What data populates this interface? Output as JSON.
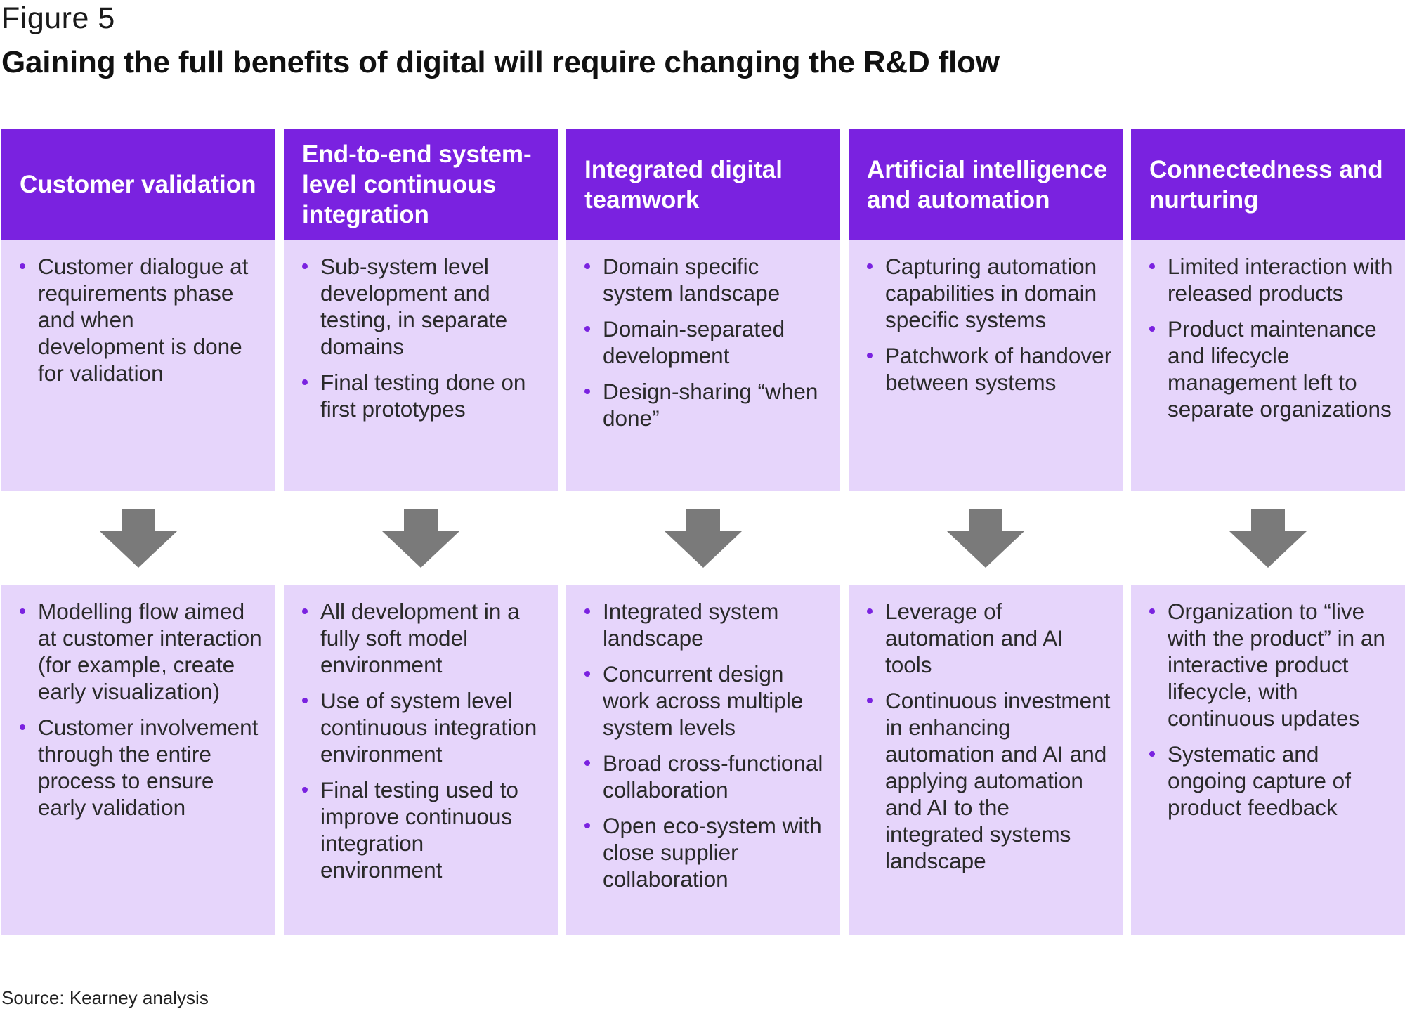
{
  "figure_label": "Figure 5",
  "title": "Gaining the full benefits of digital will require changing the R&D flow",
  "columns": [
    {
      "header": "Customer validation",
      "current": [
        "Customer dialogue at requirements phase and when development is done for validation"
      ],
      "future": [
        "Modelling flow aimed at customer interaction (for example, create early visualization)",
        "Customer involvement through the entire process to ensure early validation"
      ]
    },
    {
      "header": "End-to-end system-level continuous integration",
      "current": [
        "Sub-system level development and testing, in separate domains",
        "Final testing done on first prototypes"
      ],
      "future": [
        "All development in a fully soft model environment",
        "Use of system level continuous integration environment",
        "Final testing used to improve continuous integration environment"
      ]
    },
    {
      "header": "Integrated digital teamwork",
      "current": [
        "Domain specific system landscape",
        "Domain-separated development",
        "Design-sharing “when done”"
      ],
      "future": [
        "Integrated system landscape",
        "Concurrent design work across multiple system levels",
        "Broad cross-functional collaboration",
        "Open eco-system with close supplier collaboration"
      ]
    },
    {
      "header": "Artificial intelligence and automation",
      "current": [
        "Capturing automation capabilities in domain specific systems",
        "Patchwork of handover between systems"
      ],
      "future": [
        "Leverage of automation and AI tools",
        "Continuous investment in enhancing automation and AI and applying automation and AI to the integrated systems landscape"
      ]
    },
    {
      "header": "Connectedness and nurturing",
      "current": [
        "Limited interaction with released products",
        "Product maintenance and lifecycle management left to separate organizations"
      ],
      "future": [
        "Organization to “live with the product” in an interactive product lifecycle, with continuous updates",
        "Systematic and ongoing capture of product feedback"
      ]
    }
  ],
  "colors": {
    "header_bg": "#7a22e0",
    "box_bg": "#e6d5fb",
    "bullet": "#7a22e0",
    "arrow": "#7a7a7a"
  },
  "arrow_icon": "down-arrow-icon",
  "source": "Source: Kearney analysis"
}
